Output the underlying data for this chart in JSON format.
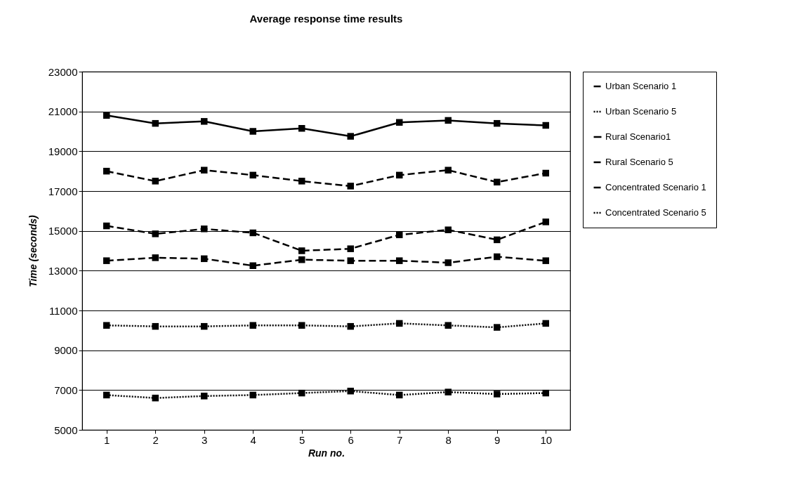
{
  "chart_data": {
    "type": "line",
    "title": "Average response time results",
    "xlabel": "Run no.",
    "ylabel": "Time (seconds)",
    "categories": [
      "1",
      "2",
      "3",
      "4",
      "5",
      "6",
      "7",
      "8",
      "9",
      "10"
    ],
    "series": [
      {
        "name": "Urban Scenario 1",
        "color": "#000000",
        "line_style": "dashed",
        "values": [
          15250,
          14850,
          15100,
          14900,
          14000,
          14100,
          14800,
          15050,
          14550,
          15450
        ]
      },
      {
        "name": "Urban Scenario 5",
        "color": "#000000",
        "line_style": "dotted",
        "values": [
          10250,
          10200,
          10200,
          10250,
          10250,
          10200,
          10350,
          10250,
          10150,
          10350
        ]
      },
      {
        "name": "Rural Scenario1",
        "color": "#000000",
        "line_style": "solid",
        "values": [
          20800,
          20400,
          20500,
          20000,
          20150,
          19750,
          20450,
          20550,
          20400,
          20300
        ]
      },
      {
        "name": "Rural Scenario 5",
        "color": "#000000",
        "line_style": "dashed",
        "values": [
          18000,
          17500,
          18050,
          17800,
          17500,
          17250,
          17800,
          18050,
          17450,
          17900
        ]
      },
      {
        "name": "Concentrated Scenario 1",
        "color": "#000000",
        "line_style": "dashed",
        "values": [
          13500,
          13650,
          13600,
          13250,
          13550,
          13500,
          13500,
          13400,
          13700,
          13500
        ]
      },
      {
        "name": "Concentrated Scenario 5",
        "color": "#000000",
        "line_style": "dotted",
        "values": [
          6750,
          6600,
          6700,
          6750,
          6850,
          6950,
          6750,
          6900,
          6800,
          6850
        ]
      }
    ],
    "ylim": [
      5000,
      23000
    ],
    "yticks": [
      5000,
      7000,
      9000,
      11000,
      13000,
      15000,
      17000,
      19000,
      21000,
      23000
    ],
    "grid": "y",
    "legend": "right",
    "marker": "square"
  }
}
